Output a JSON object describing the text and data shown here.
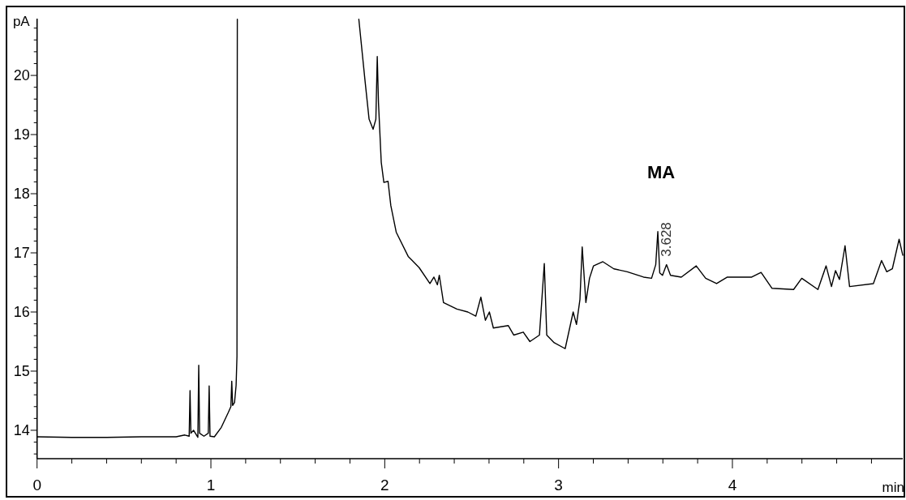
{
  "chart_data": {
    "type": "line",
    "xlabel": "min",
    "ylabel": "pA",
    "color": "#000000",
    "x": [
      0,
      0.2,
      0.4,
      0.6,
      0.8,
      0.85,
      0.875,
      0.88,
      0.885,
      0.9,
      0.925,
      0.93,
      0.935,
      0.96,
      0.985,
      0.99,
      0.995,
      1.02,
      1.06,
      1.1,
      1.115,
      1.12,
      1.125,
      1.136,
      1.145,
      1.15,
      1.152,
      1.16,
      1.851,
      1.887,
      1.91,
      1.933,
      1.949,
      1.957,
      1.964,
      1.98,
      1.995,
      2.019,
      2.035,
      2.066,
      2.135,
      2.198,
      2.26,
      2.283,
      2.303,
      2.314,
      2.338,
      2.415,
      2.478,
      2.524,
      2.553,
      2.579,
      2.602,
      2.625,
      2.711,
      2.742,
      2.797,
      2.835,
      2.89,
      2.918,
      2.932,
      2.975,
      3.038,
      3.084,
      3.103,
      3.123,
      3.136,
      3.157,
      3.178,
      3.201,
      3.255,
      3.318,
      3.395,
      3.489,
      3.535,
      3.559,
      3.571,
      3.582,
      3.598,
      3.621,
      3.644,
      3.706,
      3.792,
      3.846,
      3.909,
      3.971,
      4.111,
      4.165,
      4.228,
      4.352,
      4.399,
      4.492,
      4.539,
      4.57,
      4.593,
      4.616,
      4.648,
      4.674,
      4.811,
      4.858,
      4.888,
      4.92,
      4.959,
      4.98
    ],
    "values": [
      13.89,
      13.88,
      13.88,
      13.89,
      13.89,
      13.92,
      13.9,
      14.67,
      13.95,
      14.0,
      13.88,
      15.1,
      13.95,
      13.9,
      13.95,
      14.75,
      13.9,
      13.89,
      14.05,
      14.3,
      14.4,
      14.83,
      14.42,
      14.47,
      14.76,
      15.25,
      20.95,
      null,
      20.95,
      19.9,
      19.26,
      19.09,
      19.26,
      20.32,
      19.54,
      18.53,
      18.19,
      18.21,
      17.8,
      17.35,
      16.94,
      16.75,
      16.48,
      16.59,
      16.46,
      16.62,
      16.16,
      16.05,
      16.0,
      15.93,
      16.25,
      15.86,
      16.0,
      15.73,
      15.77,
      15.61,
      15.66,
      15.5,
      15.61,
      16.82,
      15.61,
      15.48,
      15.38,
      16.0,
      15.79,
      16.21,
      17.1,
      16.16,
      16.57,
      16.78,
      16.85,
      16.73,
      16.68,
      16.59,
      16.57,
      16.8,
      17.36,
      16.66,
      16.62,
      16.8,
      16.62,
      16.59,
      16.78,
      16.57,
      16.48,
      16.59,
      16.59,
      16.67,
      16.4,
      16.38,
      16.57,
      16.38,
      16.78,
      16.43,
      16.7,
      16.55,
      17.12,
      16.43,
      16.48,
      16.87,
      16.68,
      16.73,
      17.23,
      16.96
    ],
    "xlim": [
      0,
      4.98
    ],
    "xticks": [
      0,
      {
        "value": 0.2,
        "label": null
      },
      {
        "value": 0.4,
        "label": null
      },
      {
        "value": 0.6,
        "label": null
      },
      {
        "value": 0.8,
        "label": null
      },
      1,
      {
        "value": 1.2,
        "label": null
      },
      {
        "value": 1.4,
        "label": null
      },
      {
        "value": 1.6,
        "label": null
      },
      {
        "value": 1.8,
        "label": null
      },
      2,
      {
        "value": 2.2,
        "label": null
      },
      {
        "value": 2.4,
        "label": null
      },
      {
        "value": 2.6,
        "label": null
      },
      {
        "value": 2.8,
        "label": null
      },
      3,
      {
        "value": 3.2,
        "label": null
      },
      {
        "value": 3.4,
        "label": null
      },
      {
        "value": 3.6,
        "label": null
      },
      {
        "value": 3.8,
        "label": null
      },
      4,
      {
        "value": 4.2,
        "label": null
      },
      {
        "value": 4.4,
        "label": null
      },
      {
        "value": 4.6,
        "label": null
      },
      {
        "value": 4.8,
        "label": null
      }
    ],
    "ylim": [
      13.52,
      20.96
    ],
    "yticks": [
      {
        "value": 13.6,
        "label": null
      },
      {
        "value": 13.8,
        "label": null
      },
      14,
      {
        "value": 14.2,
        "label": null
      },
      {
        "value": 14.4,
        "label": null
      },
      {
        "value": 14.6,
        "label": null
      },
      {
        "value": 14.8,
        "label": null
      },
      15,
      {
        "value": 15.2,
        "label": null
      },
      {
        "value": 15.4,
        "label": null
      },
      {
        "value": 15.6,
        "label": null
      },
      {
        "value": 15.8,
        "label": null
      },
      16,
      {
        "value": 16.2,
        "label": null
      },
      {
        "value": 16.4,
        "label": null
      },
      {
        "value": 16.6,
        "label": null
      },
      {
        "value": 16.8,
        "label": null
      },
      17,
      {
        "value": 17.2,
        "label": null
      },
      {
        "value": 17.4,
        "label": null
      },
      {
        "value": 17.6,
        "label": null
      },
      {
        "value": 17.8,
        "label": null
      },
      18,
      {
        "value": 18.2,
        "label": null
      },
      {
        "value": 18.4,
        "label": null
      },
      {
        "value": 18.6,
        "label": null
      },
      {
        "value": 18.8,
        "label": null
      },
      19,
      {
        "value": 19.2,
        "label": null
      },
      {
        "value": 19.4,
        "label": null
      },
      {
        "value": 19.6,
        "label": null
      },
      {
        "value": 19.8,
        "label": null
      },
      20,
      {
        "value": 20.2,
        "label": null
      },
      {
        "value": 20.4,
        "label": null
      },
      {
        "value": 20.6,
        "label": null
      },
      {
        "value": 20.8,
        "label": null
      }
    ],
    "annotations": [
      {
        "text": "MA",
        "x": 3.571,
        "y": 17.36
      },
      {
        "text": "3.628",
        "x": 3.571,
        "y": 17.36
      }
    ]
  }
}
